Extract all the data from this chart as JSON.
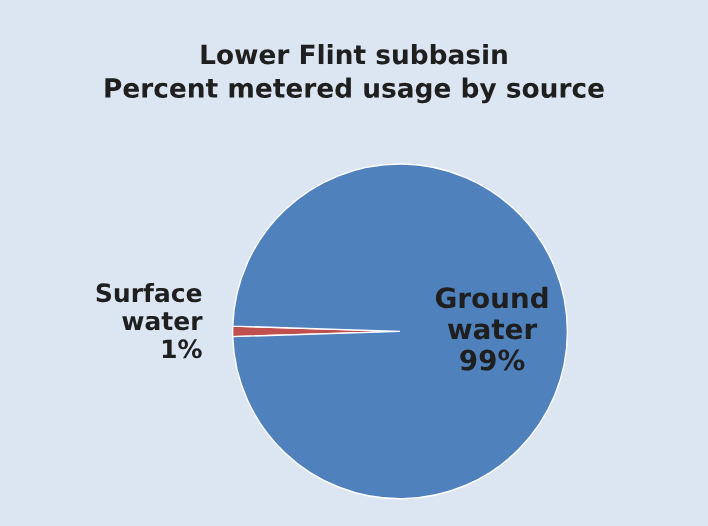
{
  "chart_data": {
    "type": "pie",
    "title": "Lower Flint subbasin\nPercent metered usage by source",
    "categories": [
      "Surface water",
      "Ground water"
    ],
    "values": [
      1,
      99
    ],
    "colors": [
      "#c0504d",
      "#4f81bd"
    ],
    "value_labels": [
      "1%",
      "99%"
    ]
  }
}
